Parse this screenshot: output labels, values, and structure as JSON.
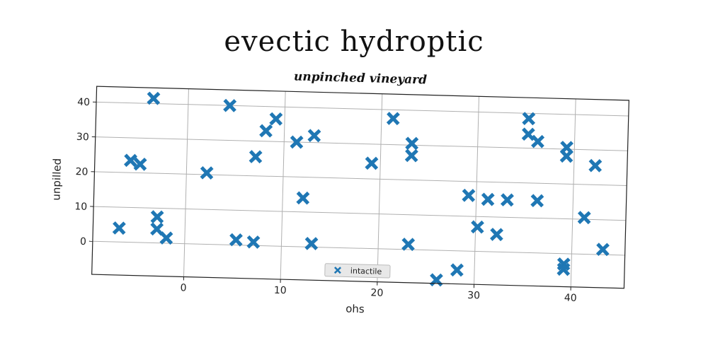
{
  "chart_data": {
    "type": "scatter",
    "title": "evectic hydroptic",
    "subtitle": "unpinched vineyard",
    "xlabel": "ohs",
    "ylabel": "unpilled",
    "xlim": [
      -9.5,
      45.5
    ],
    "ylim": [
      -9.5,
      44.5
    ],
    "xticks": [
      0,
      10,
      20,
      30,
      40
    ],
    "yticks": [
      0,
      10,
      20,
      30,
      40
    ],
    "grid": true,
    "legend_position": "lower-center",
    "series": [
      {
        "name": "intactile",
        "color": "#1f77b4",
        "marker": "x-filled",
        "points": [
          [
            -6.8,
            4
          ],
          [
            -5.8,
            23.5
          ],
          [
            -4.8,
            22.5
          ],
          [
            -3.6,
            41.5
          ],
          [
            -2.9,
            7.5
          ],
          [
            -2.9,
            4
          ],
          [
            -1.9,
            1.5
          ],
          [
            2.1,
            20.5
          ],
          [
            4.3,
            40
          ],
          [
            5.3,
            1.5
          ],
          [
            7.1,
            25.5
          ],
          [
            7.1,
            1
          ],
          [
            8.1,
            33
          ],
          [
            9.1,
            36.5
          ],
          [
            11.3,
            30
          ],
          [
            12.1,
            14
          ],
          [
            13.1,
            32
          ],
          [
            13.1,
            1
          ],
          [
            19.1,
            24.5
          ],
          [
            21.2,
            37.5
          ],
          [
            23.2,
            30.5
          ],
          [
            23.2,
            27
          ],
          [
            23.1,
            1.5
          ],
          [
            26.1,
            -8.5
          ],
          [
            28.2,
            -5.5
          ],
          [
            29.2,
            16
          ],
          [
            30.2,
            7
          ],
          [
            31.2,
            15
          ],
          [
            32.2,
            5
          ],
          [
            33.2,
            15
          ],
          [
            35.2,
            38.5
          ],
          [
            35.2,
            34
          ],
          [
            36.2,
            32
          ],
          [
            36.3,
            15
          ],
          [
            39.2,
            30.5
          ],
          [
            39.2,
            28
          ],
          [
            39.2,
            -3
          ],
          [
            39.2,
            -4.5
          ],
          [
            41.2,
            10.5
          ],
          [
            42.2,
            25.5
          ],
          [
            43.2,
            1.5
          ]
        ]
      }
    ]
  }
}
